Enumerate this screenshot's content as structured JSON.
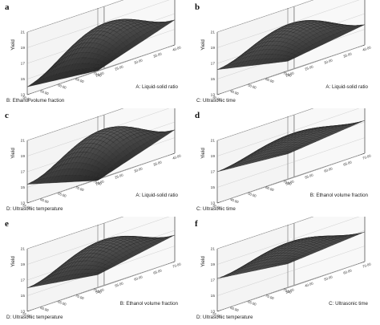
{
  "figure": {
    "colors": {
      "surface": "#555555",
      "mesh": "#1c1c1c",
      "floor": "#c8c8c8",
      "floor_line": "#9a9a9a",
      "frame": "#444444"
    }
  },
  "chart_data": [
    {
      "type": "surface3d",
      "panel_label": "a",
      "zlabel": "Yield",
      "xlabel": "B: Ethanol volume fraction",
      "ylabel": "A: Liquid-solid ratio",
      "x_ticks": [
        "50.00",
        "55.00",
        "60.00",
        "65.00",
        "70.00"
      ],
      "y_ticks": [
        "20.00",
        "25.00",
        "30.00",
        "35.00",
        "40.00"
      ],
      "z_ticks": [
        "13",
        "15",
        "17",
        "19",
        "21"
      ],
      "zlim": [
        13,
        21
      ],
      "x_range": [
        50,
        70
      ],
      "y_range": [
        20,
        40
      ],
      "surface": {
        "z_center": 18.6,
        "z_x_low_corner": 14.0,
        "z_y_low_corner": 16.2,
        "z_both_high": 17.4,
        "z_both_low": 13.0
      }
    },
    {
      "type": "surface3d",
      "panel_label": "b",
      "zlabel": "Yield",
      "xlabel": "C: Ultrasonic time",
      "ylabel": "A: Liquid-solid ratio",
      "x_ticks": [
        "30.00",
        "40.00",
        "50.00",
        "60.00",
        "70.00"
      ],
      "y_ticks": [
        "20.00",
        "25.00",
        "30.00",
        "35.00",
        "40.00"
      ],
      "z_ticks": [
        "13",
        "15",
        "17",
        "19",
        "21"
      ],
      "zlim": [
        13,
        21
      ],
      "x_range": [
        30,
        70
      ],
      "y_range": [
        20,
        40
      ],
      "surface": {
        "z_center": 18.8,
        "z_x_low_corner": 16.2,
        "z_y_low_corner": 15.6,
        "z_both_high": 17.8,
        "z_both_low": 14.2
      }
    },
    {
      "type": "surface3d",
      "panel_label": "c",
      "zlabel": "Yield",
      "xlabel": "D: Ultrasonic temperature",
      "ylabel": "A: Liquid-solid ratio",
      "x_ticks": [
        "55.00",
        "60.00",
        "65.00",
        "70.00",
        "75.00"
      ],
      "y_ticks": [
        "20.00",
        "25.00",
        "30.00",
        "35.00",
        "40.00"
      ],
      "z_ticks": [
        "13",
        "15",
        "17",
        "19",
        "21"
      ],
      "zlim": [
        13,
        21
      ],
      "x_range": [
        55,
        75
      ],
      "y_range": [
        20,
        40
      ],
      "surface": {
        "z_center": 19.0,
        "z_x_low_corner": 15.4,
        "z_y_low_corner": 16.0,
        "z_both_high": 17.2,
        "z_both_low": 12.8
      }
    },
    {
      "type": "surface3d",
      "panel_label": "d",
      "zlabel": "Yield",
      "xlabel": "C: Ultrasonic time",
      "ylabel": "B: Ethanol volume fraction",
      "x_ticks": [
        "30.00",
        "40.00",
        "50.00",
        "60.00",
        "70.00"
      ],
      "y_ticks": [
        "50.00",
        "55.00",
        "60.00",
        "65.00",
        "70.00"
      ],
      "z_ticks": [
        "13",
        "15",
        "17",
        "19",
        "21"
      ],
      "zlim": [
        13,
        21
      ],
      "x_range": [
        30,
        70
      ],
      "y_range": [
        50,
        70
      ],
      "surface": {
        "z_center": 18.6,
        "z_x_low_corner": 17.0,
        "z_y_low_corner": 17.2,
        "z_both_high": 17.9,
        "z_both_low": 16.2
      }
    },
    {
      "type": "surface3d",
      "panel_label": "e",
      "zlabel": "Yield",
      "xlabel": "D: Ultrasonic temperature",
      "ylabel": "B: Ethanol volume fraction",
      "x_ticks": [
        "55.00",
        "60.00",
        "65.00",
        "70.00",
        "75.00"
      ],
      "y_ticks": [
        "50.00",
        "55.00",
        "60.00",
        "65.00",
        "70.00"
      ],
      "z_ticks": [
        "13",
        "15",
        "17",
        "19",
        "21"
      ],
      "zlim": [
        13,
        21
      ],
      "x_range": [
        55,
        75
      ],
      "y_range": [
        50,
        70
      ],
      "surface": {
        "z_center": 18.8,
        "z_x_low_corner": 16.0,
        "z_y_low_corner": 16.4,
        "z_both_high": 17.2,
        "z_both_low": 14.6
      }
    },
    {
      "type": "surface3d",
      "panel_label": "f",
      "zlabel": "Yield",
      "xlabel": "D: Ultrasonic temperature",
      "ylabel": "C: Ultrasonic time",
      "x_ticks": [
        "55.00",
        "60.00",
        "65.00",
        "70.00",
        "75.00"
      ],
      "y_ticks": [
        "30.00",
        "40.00",
        "50.00",
        "60.00",
        "70.00"
      ],
      "z_ticks": [
        "13",
        "15",
        "17",
        "19",
        "21"
      ],
      "zlim": [
        13,
        21
      ],
      "x_range": [
        55,
        75
      ],
      "y_range": [
        30,
        70
      ],
      "surface": {
        "z_center": 18.7,
        "z_x_low_corner": 17.2,
        "z_y_low_corner": 16.8,
        "z_both_high": 17.6,
        "z_both_low": 16.0
      }
    }
  ]
}
